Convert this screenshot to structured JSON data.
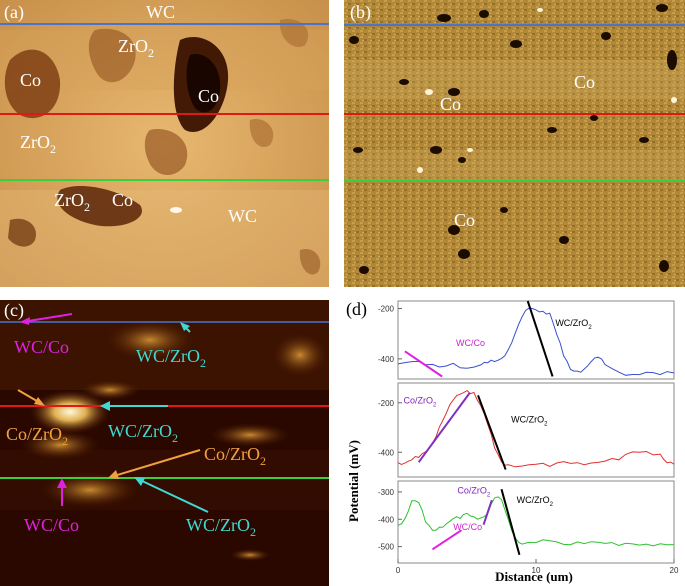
{
  "figure": {
    "panel_a": {
      "letter": "(a)",
      "labels": [
        "WC",
        "ZrO2",
        "Co",
        "Co",
        "ZrO2",
        "ZrO2",
        "Co",
        "WC"
      ],
      "label_parts": {
        "wc_top": "WC",
        "zro2_top": "ZrO",
        "co_left": "Co",
        "co_center": "Co",
        "zro2_mid": "ZrO",
        "zro2_low": "ZrO",
        "co_low": "Co",
        "wc_low": "WC"
      },
      "subscript": "2"
    },
    "panel_b": {
      "letter": "(b)",
      "labels": {
        "co1": "Co",
        "co2": "Co",
        "co3": "Co"
      }
    },
    "panel_c": {
      "letter": "(c)",
      "wc_co_1": "WC/Co",
      "wc_zro2_1": "WC/ZrO",
      "co_zro2_1": "Co/ZrO",
      "wc_zro2_2": "WC/ZrO",
      "co_zro2_2": "Co/ZrO",
      "wc_co_2": "WC/Co",
      "wc_zro2_3": "WC/ZrO",
      "subscript": "2"
    },
    "colors": {
      "line_blue": "#4a74c9",
      "line_red": "#e01818",
      "line_green": "#3ccf3c",
      "magenta": "#e020e0",
      "cyan": "#40d8d0",
      "orange": "#f0a040"
    }
  },
  "chart_data": {
    "type": "line",
    "panel_letter": "(d)",
    "xlabel": "Distance (um)",
    "ylabel": "Potential (mV)",
    "xlim": [
      0,
      20
    ],
    "xticks": [
      "0",
      "10",
      "20"
    ],
    "subplots": [
      {
        "name": "blue-profile",
        "color": "#3a4fd0",
        "ylim": [
          -480,
          -170
        ],
        "yticks": [
          "-200",
          "-400"
        ],
        "ytick_values": [
          -200,
          -400
        ],
        "annotations": [
          "WC/Co",
          "WC/ZrO"
        ],
        "annotation_subscripts": [
          "",
          "2"
        ],
        "x": [
          0,
          1,
          2,
          3,
          4,
          5,
          6,
          6.5,
          7,
          7.5,
          8,
          8.5,
          9,
          9.5,
          10,
          10.5,
          11,
          11.5,
          12,
          12.5,
          13,
          13.5,
          14,
          14.5,
          15,
          16,
          17,
          18,
          19,
          20
        ],
        "y": [
          -420,
          -410,
          -425,
          -430,
          -420,
          -435,
          -425,
          -415,
          -410,
          -400,
          -360,
          -300,
          -230,
          -200,
          -205,
          -210,
          -220,
          -300,
          -390,
          -440,
          -450,
          -440,
          -410,
          -395,
          -420,
          -455,
          -460,
          -455,
          -462,
          -455
        ]
      },
      {
        "name": "red-profile",
        "color": "#e03030",
        "ylim": [
          -500,
          -120
        ],
        "yticks": [
          "-200",
          "-400"
        ],
        "ytick_values": [
          -200,
          -400
        ],
        "annotations": [
          "Co/ZrO",
          "WC/ZrO"
        ],
        "annotation_subscripts": [
          "2",
          "2"
        ],
        "x": [
          0,
          0.5,
          1,
          1.5,
          2,
          2.5,
          3,
          3.5,
          4,
          4.5,
          5,
          5.5,
          6,
          6.5,
          7,
          7.5,
          8,
          9,
          10,
          11,
          12,
          13,
          14,
          15,
          16,
          17,
          18,
          19,
          19.5,
          20
        ],
        "y": [
          -440,
          -445,
          -430,
          -420,
          -400,
          -360,
          -300,
          -240,
          -190,
          -165,
          -150,
          -160,
          -210,
          -290,
          -380,
          -440,
          -450,
          -455,
          -450,
          -455,
          -440,
          -440,
          -445,
          -435,
          -430,
          -400,
          -395,
          -410,
          -440,
          -450
        ]
      },
      {
        "name": "green-profile",
        "color": "#30c030",
        "ylim": [
          -560,
          -260
        ],
        "yticks": [
          "-300",
          "-400",
          "-500"
        ],
        "ytick_values": [
          -300,
          -400,
          -500
        ],
        "annotations": [
          "Co/ZrO",
          "WC/ZrO",
          "WC/Co"
        ],
        "annotation_subscripts": [
          "2",
          "2",
          ""
        ],
        "x": [
          0,
          0.5,
          1,
          1.5,
          2,
          2.5,
          3,
          3.5,
          4,
          4.5,
          5,
          5.5,
          6,
          6.5,
          7,
          7.5,
          8,
          8.5,
          9,
          10,
          11,
          12,
          13,
          14,
          15,
          16,
          17,
          18,
          19,
          20
        ],
        "y": [
          -420,
          -400,
          -330,
          -340,
          -410,
          -440,
          -430,
          -415,
          -400,
          -395,
          -380,
          -390,
          -395,
          -380,
          -320,
          -330,
          -400,
          -470,
          -490,
          -485,
          -480,
          -490,
          -485,
          -480,
          -490,
          -495,
          -490,
          -492,
          -488,
          -495
        ]
      }
    ]
  }
}
